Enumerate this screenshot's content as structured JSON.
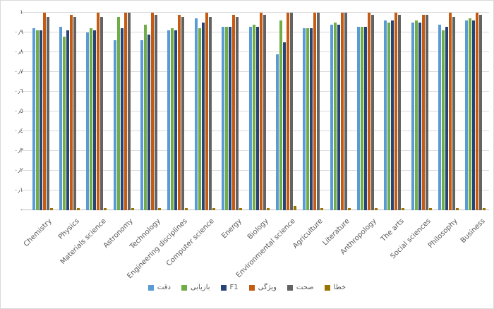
{
  "chart_data": {
    "type": "bar",
    "title": "",
    "xlabel": "",
    "ylabel": "",
    "grid": true,
    "legend_position": "bottom",
    "ylim": [
      0,
      1
    ],
    "y_tick_values": [
      0,
      0.1,
      0.2,
      0.3,
      0.4,
      0.5,
      0.6,
      0.7,
      0.8,
      0.9,
      1
    ],
    "y_tick_labels": [
      "٠",
      "٠٫١",
      "٠٫٢",
      "٠٫٣",
      "٠٫٤",
      "٠٫٥",
      "٠٫٦",
      "٠٫٧",
      "٠٫٨",
      "٠٫٩",
      "١"
    ],
    "categories": [
      "Chemistry",
      "Physics",
      "Materials science",
      "Astronomy",
      "Technology",
      "Engineering disciplines",
      "Computer science",
      "Energy",
      "Biology",
      "Environmental science",
      "Agriculture",
      "Literature",
      "Anthropology",
      "The arts",
      "Social sciences",
      "Philosophy",
      "Business"
    ],
    "series": [
      {
        "name": "دقت",
        "color": "#5B9BD5",
        "values": [
          0.92,
          0.93,
          0.9,
          0.86,
          0.86,
          0.91,
          0.97,
          0.93,
          0.93,
          0.79,
          0.92,
          0.94,
          0.93,
          0.96,
          0.95,
          0.94,
          0.96
        ]
      },
      {
        "name": "بازیابی",
        "color": "#70AD47",
        "values": [
          0.91,
          0.88,
          0.92,
          0.98,
          0.94,
          0.92,
          0.92,
          0.93,
          0.94,
          0.96,
          0.92,
          0.95,
          0.93,
          0.95,
          0.96,
          0.91,
          0.97
        ]
      },
      {
        "name": "F1",
        "color": "#264478",
        "values": [
          0.91,
          0.91,
          0.91,
          0.92,
          0.89,
          0.91,
          0.95,
          0.93,
          0.93,
          0.85,
          0.92,
          0.94,
          0.93,
          0.96,
          0.95,
          0.93,
          0.96
        ]
      },
      {
        "name": "ویژگی",
        "color": "#C55A11",
        "values": [
          1.0,
          0.99,
          1.0,
          1.0,
          1.0,
          0.99,
          1.0,
          0.99,
          1.0,
          1.0,
          1.0,
          1.0,
          1.0,
          1.0,
          0.99,
          1.0,
          1.0
        ]
      },
      {
        "name": "صحت",
        "color": "#636363",
        "values": [
          0.98,
          0.98,
          0.98,
          1.0,
          0.99,
          0.98,
          0.98,
          0.98,
          0.99,
          1.0,
          1.0,
          1.0,
          0.99,
          0.99,
          0.99,
          0.98,
          0.99
        ]
      },
      {
        "name": "خطا",
        "color": "#997300",
        "values": [
          0.01,
          0.01,
          0.01,
          0.01,
          0.01,
          0.01,
          0.01,
          0.01,
          0.01,
          0.02,
          0.01,
          0.01,
          0.01,
          0.01,
          0.01,
          0.01,
          0.01
        ]
      }
    ]
  },
  "style": {
    "grid_color": "#D9D9D9",
    "axis_line_color": "#BFBFBF",
    "axis_text_color": "#595959",
    "background": "#FFFFFF"
  }
}
